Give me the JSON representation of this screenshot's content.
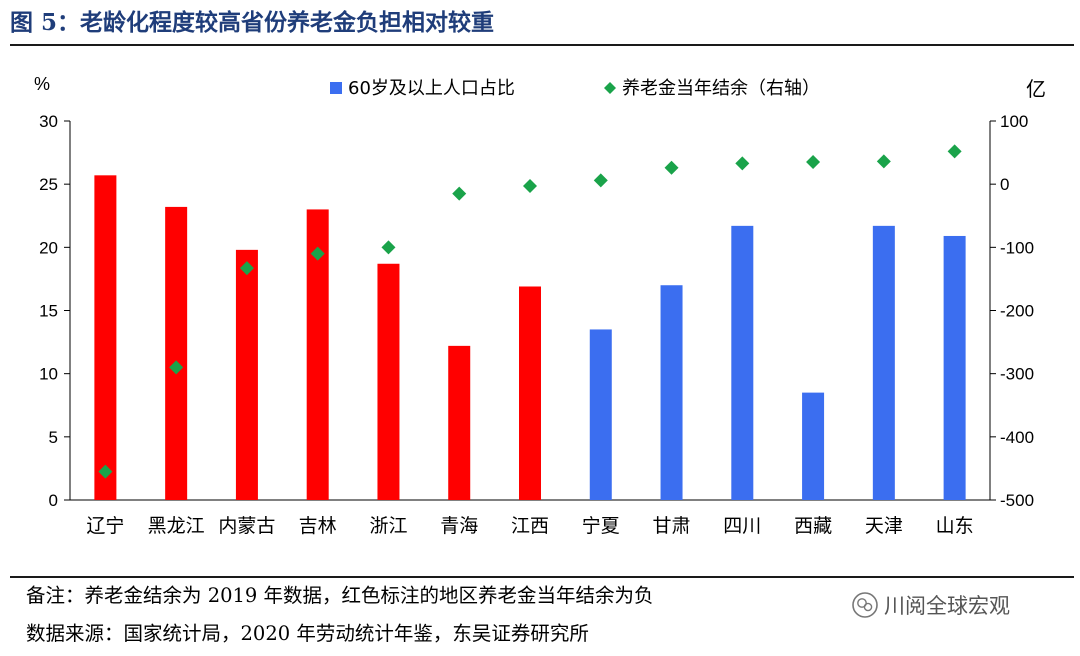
{
  "figure": {
    "title": "图 5：老龄化程度较高省份养老金负担相对较重",
    "note": "备注：养老金结余为 2019 年数据，红色标注的地区养老金当年结余为负",
    "source": "数据来源：国家统计局，2020 年劳动统计年鉴，东吴证券研究所",
    "watermark": "川阅全球宏观"
  },
  "colors": {
    "title": "#1f3d7a",
    "negative_region_bar": "#ff0000",
    "positive_region_bar": "#3b6ef0",
    "marker": "#1aa34a"
  },
  "chart_data": {
    "type": "bar",
    "categories": [
      "辽宁",
      "黑龙江",
      "内蒙古",
      "吉林",
      "浙江",
      "青海",
      "江西",
      "宁夏",
      "甘肃",
      "四川",
      "西藏",
      "天津",
      "山东"
    ],
    "series": [
      {
        "name": "60岁及以上人口占比",
        "type": "bar",
        "axis": "left",
        "values": [
          25.7,
          23.2,
          19.8,
          23.0,
          18.7,
          12.2,
          16.9,
          13.5,
          17.0,
          21.7,
          8.5,
          21.7,
          20.9
        ],
        "colors": [
          "#ff0000",
          "#ff0000",
          "#ff0000",
          "#ff0000",
          "#ff0000",
          "#ff0000",
          "#ff0000",
          "#3b6ef0",
          "#3b6ef0",
          "#3b6ef0",
          "#3b6ef0",
          "#3b6ef0",
          "#3b6ef0"
        ]
      },
      {
        "name": "养老金当年结余（右轴）",
        "type": "scatter",
        "axis": "right",
        "marker": "diamond",
        "values": [
          -455,
          -290,
          -133,
          -110,
          -100,
          -15,
          -3,
          6,
          26,
          33,
          35,
          36,
          52
        ]
      }
    ],
    "y_left": {
      "unit_label": "%",
      "min": 0,
      "max": 30,
      "ticks": [
        0,
        5,
        10,
        15,
        20,
        25,
        30
      ]
    },
    "y_right": {
      "unit_label": "亿",
      "min": -500,
      "max": 100,
      "ticks": [
        -500,
        -400,
        -300,
        -200,
        -100,
        0,
        100
      ]
    },
    "legend_placement": "top",
    "grid": false
  }
}
